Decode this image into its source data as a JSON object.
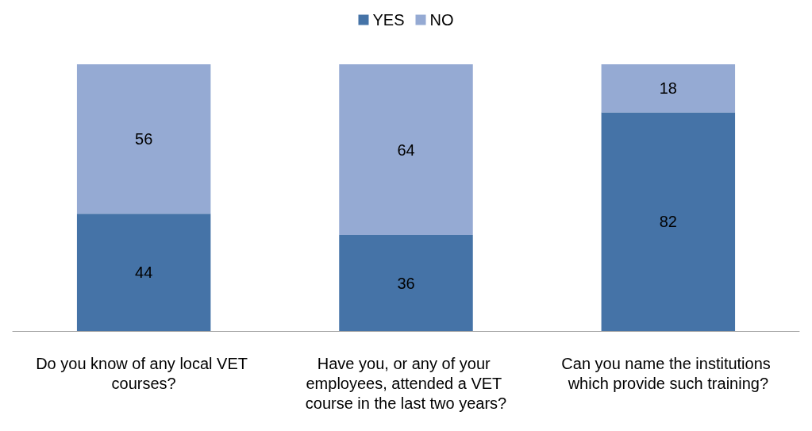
{
  "chart_data": {
    "type": "bar",
    "stacked": true,
    "categories": [
      "Do you know of any local VET courses?",
      "Have you, or any of your employees, attended a VET course in the last two years?",
      "Can you name the institutions which provide such training?"
    ],
    "series": [
      {
        "name": "YES",
        "color": "#4573a7",
        "values": [
          44,
          36,
          82
        ]
      },
      {
        "name": "NO",
        "color": "#95aad3",
        "values": [
          56,
          64,
          18
        ]
      }
    ],
    "ylim": [
      0,
      100
    ],
    "data_labels": true,
    "legend": "top",
    "grid": false,
    "tick_labels": "x"
  }
}
